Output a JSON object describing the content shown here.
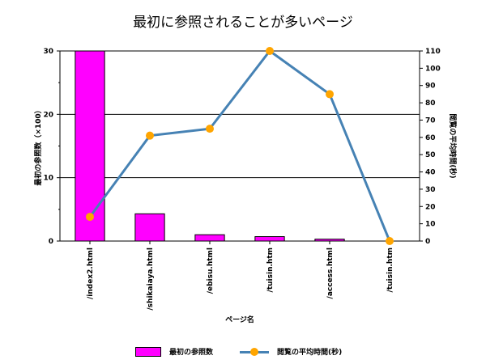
{
  "chart_data": {
    "type": "bar+line",
    "title": "最初に参照されることが多いページ",
    "xlabel": "ページ名",
    "categories": [
      "/index2.html",
      "/shikaiaya.html",
      "/ebisu.html",
      "/tuisin.htm",
      "/access.html",
      "/tuisin.htm"
    ],
    "series": [
      {
        "name": "最初の参照数",
        "kind": "bar",
        "axis": "left",
        "color": "#ff00ff",
        "values": [
          30,
          4.3,
          1.0,
          0.7,
          0.3,
          0
        ]
      },
      {
        "name": "閲覧の平均時間(秒)",
        "kind": "line",
        "axis": "right",
        "color": "#4682b4",
        "marker_color": "#ffa500",
        "values": [
          14,
          61,
          65,
          110,
          85,
          0
        ]
      }
    ],
    "y_left": {
      "label": "最初の参照数（×100）",
      "ylim": [
        0,
        30
      ],
      "ticks": [
        0,
        10,
        20,
        30
      ]
    },
    "y_right": {
      "label": "閲覧の平均時間(秒)",
      "ylim": [
        0,
        110
      ],
      "ticks": [
        0,
        10,
        20,
        30,
        40,
        50,
        60,
        70,
        80,
        90,
        100,
        110
      ]
    },
    "grid": true,
    "legend_position": "bottom"
  }
}
